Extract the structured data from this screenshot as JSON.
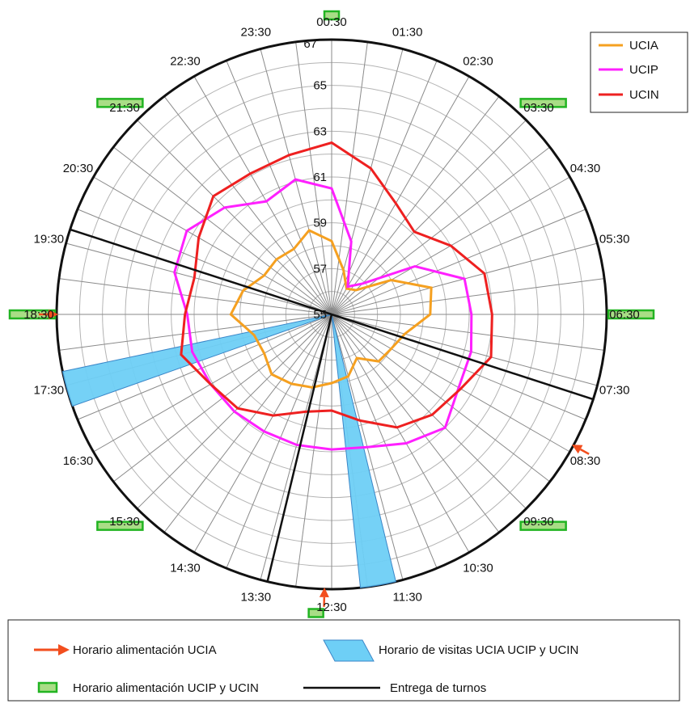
{
  "chart_data": {
    "type": "radar",
    "radial_range": [
      55,
      67
    ],
    "radial_ticks": [
      55,
      57,
      59,
      61,
      63,
      65,
      67
    ],
    "angle_labels": [
      "00:30",
      "01:30",
      "02:30",
      "03:30",
      "04:30",
      "05:30",
      "06:30",
      "07:30",
      "08:30",
      "09:30",
      "10:30",
      "11:30",
      "12:30",
      "13:30",
      "14:30",
      "15:30",
      "16:30",
      "17:30",
      "18:30",
      "19:30",
      "20:30",
      "21:30",
      "22:30",
      "23:30"
    ],
    "grid": true,
    "legend_position": "top-right",
    "series": [
      {
        "name": "UCIA",
        "color": "#f5a020",
        "values": [
          58.2,
          57.0,
          56.3,
          56.5,
          58.0,
          59.5,
          59.3,
          58.3,
          58.0,
          57.9,
          57.2,
          57.8,
          58.0,
          58.3,
          58.5,
          58.7,
          58.4,
          58.5,
          59.4,
          59.0,
          58.4,
          58.4,
          58.3,
          58.8
        ]
      },
      {
        "name": "UCIP",
        "color": "#ff20ff",
        "values": [
          60.5,
          58.3,
          56.4,
          56.9,
          59.2,
          61.0,
          61.1,
          61.3,
          61.4,
          62.0,
          61.5,
          61.0,
          60.9,
          60.9,
          60.9,
          61.0,
          61.1,
          61.3,
          61.3,
          62.1,
          62.3,
          61.6,
          60.7,
          61.1
        ]
      },
      {
        "name": "UCIN",
        "color": "#ee2020",
        "values": [
          62.5,
          61.6,
          60.6,
          60.1,
          61.0,
          61.9,
          62.0,
          62.2,
          61.5,
          61.2,
          60.7,
          59.8,
          59.2,
          59.4,
          60.1,
          60.8,
          61.1,
          61.8,
          61.4,
          61.2,
          61.7,
          62.3,
          62.1,
          62.2
        ]
      }
    ],
    "legend": {
      "feeding_ucia": "Horario alimentación UCIA",
      "visits": "Horario de visitas UCIA UCIP y UCIN",
      "feeding_ucip_ucin": "Horario alimentación UCIP y UCIN",
      "shift_change": "Entrega de turnos"
    },
    "visit_color": "#6ecff6",
    "feeding_ucia_color": "#f24e1e",
    "feeding_ucip_ucin_fill": "#a9dd86",
    "feeding_ucip_ucin_stroke": "#22b422",
    "shift_change_color": "#111111",
    "visiting_hours": [
      [
        16.7,
        17.2
      ],
      [
        11.1,
        11.6
      ]
    ],
    "shift_changes": [
      7.2,
      12.9,
      19.2
    ],
    "feeding_ucia": [
      7.9,
      12.1,
      18.0
    ],
    "feeding_ucip_ucin": [
      0.0,
      3.0,
      6.0,
      9.0,
      12.2,
      15.0,
      18.0,
      21.0
    ]
  }
}
